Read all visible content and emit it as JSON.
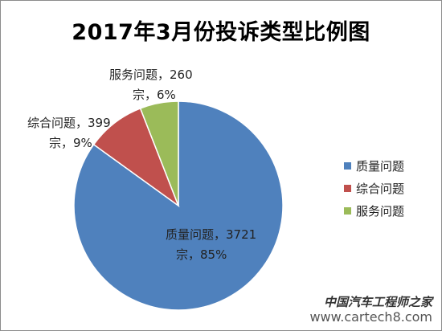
{
  "chart_data": {
    "type": "pie",
    "title": "2017年3月份投诉类型比例图",
    "slices": [
      {
        "name": "质量问题",
        "value": 3721,
        "percent": 85,
        "color": "#4F81BD",
        "label_line1": "质量问题，3721",
        "label_line2": "宗，85%"
      },
      {
        "name": "综合问题",
        "value": 399,
        "percent": 9,
        "color": "#C0504D",
        "label_line1": "综合问题，399",
        "label_line2": "宗，9%"
      },
      {
        "name": "服务问题",
        "value": 260,
        "percent": 6,
        "color": "#9BBB59",
        "label_line1": "服务问题，260",
        "label_line2": "宗，6%"
      }
    ],
    "legend_position": "right"
  },
  "watermark": {
    "brand": "中国汽车工程师之家",
    "url": "www.cartech8.com"
  }
}
